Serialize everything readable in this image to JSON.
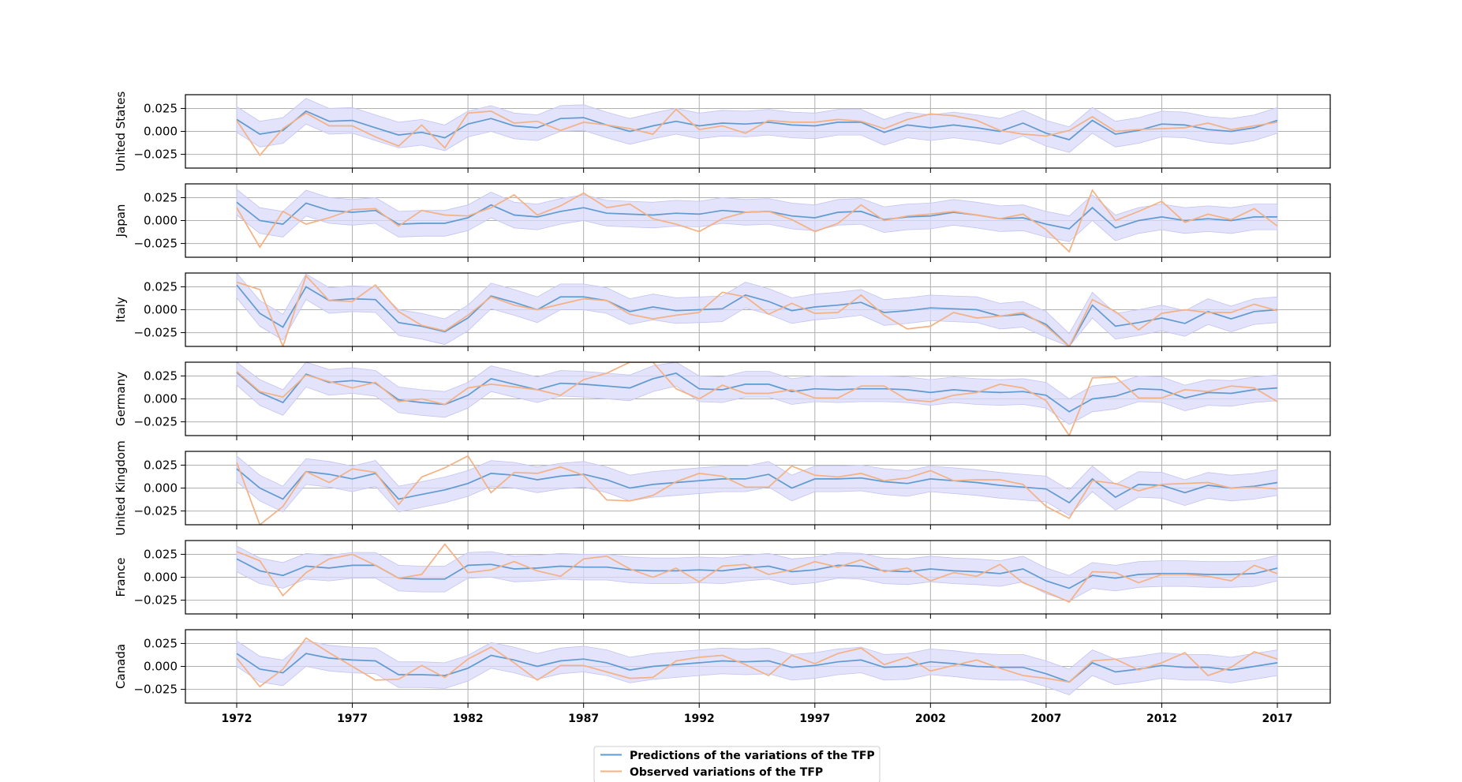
{
  "chart_data": {
    "type": "line",
    "years": [
      1972,
      1973,
      1974,
      1975,
      1976,
      1977,
      1978,
      1979,
      1980,
      1981,
      1982,
      1983,
      1984,
      1985,
      1986,
      1987,
      1988,
      1989,
      1990,
      1991,
      1992,
      1993,
      1994,
      1995,
      1996,
      1997,
      1998,
      1999,
      2000,
      2001,
      2002,
      2003,
      2004,
      2005,
      2006,
      2007,
      2008,
      2009,
      2010,
      2011,
      2012,
      2013,
      2014,
      2015,
      2016,
      2017
    ],
    "x_ticks": [
      "1972",
      "1977",
      "1982",
      "1987",
      "1992",
      "1997",
      "2002",
      "2007",
      "2012",
      "2017"
    ],
    "y_ticks": [
      "0.025",
      "0.000",
      "−0.025"
    ],
    "ylim": [
      -0.04,
      0.04
    ],
    "grid": true,
    "legend_position": "bottom-center",
    "colors": {
      "predicted": "#5f9ad1",
      "observed": "#f4b183",
      "band": "#d9d9fb",
      "band_stroke": "#c3c3f2",
      "grid": "#b0b0b0"
    },
    "legend": [
      {
        "label": "Predictions of the variations of the TFP",
        "color": "#5f9ad1"
      },
      {
        "label": "Observed variations of the TFP",
        "color": "#f4b183"
      }
    ],
    "band_halfwidth": 0.014,
    "panels": [
      {
        "country": "United States",
        "predicted": [
          0.013,
          -0.003,
          0.001,
          0.022,
          0.011,
          0.012,
          0.004,
          -0.004,
          -0.001,
          -0.007,
          0.008,
          0.014,
          0.006,
          0.004,
          0.014,
          0.015,
          0.007,
          0.0,
          0.006,
          0.011,
          0.006,
          0.009,
          0.008,
          0.01,
          0.007,
          0.006,
          0.01,
          0.01,
          -0.001,
          0.007,
          0.004,
          0.007,
          0.004,
          0.0,
          0.009,
          -0.002,
          -0.009,
          0.012,
          -0.003,
          0.001,
          0.008,
          0.007,
          0.002,
          0.0,
          0.004,
          0.012
        ],
        "observed": [
          0.012,
          -0.026,
          0.003,
          0.02,
          0.006,
          0.006,
          -0.006,
          -0.016,
          0.007,
          -0.018,
          0.02,
          0.022,
          0.009,
          0.011,
          0.001,
          0.01,
          0.007,
          0.003,
          -0.003,
          0.024,
          0.002,
          0.006,
          -0.002,
          0.012,
          0.01,
          0.01,
          0.013,
          0.011,
          0.003,
          0.013,
          0.019,
          0.017,
          0.012,
          0.001,
          -0.003,
          -0.005,
          0.001,
          0.016,
          0.0,
          0.002,
          0.003,
          0.004,
          0.009,
          0.002,
          0.006,
          0.01
        ]
      },
      {
        "country": "Japan",
        "predicted": [
          0.02,
          0.0,
          -0.004,
          0.019,
          0.011,
          0.009,
          0.011,
          -0.004,
          -0.003,
          -0.003,
          0.003,
          0.017,
          0.006,
          0.004,
          0.01,
          0.014,
          0.008,
          0.007,
          0.006,
          0.008,
          0.007,
          0.011,
          0.009,
          0.01,
          0.005,
          0.003,
          0.009,
          0.01,
          0.001,
          0.004,
          0.005,
          0.009,
          0.006,
          0.002,
          0.003,
          -0.004,
          -0.009,
          0.014,
          -0.008,
          0.0,
          0.004,
          0.0,
          0.002,
          0.0,
          0.004,
          0.004
        ],
        "observed": [
          0.014,
          -0.029,
          0.01,
          -0.004,
          0.003,
          0.012,
          0.013,
          -0.006,
          0.011,
          0.006,
          0.005,
          0.014,
          0.028,
          0.006,
          0.016,
          0.03,
          0.014,
          0.018,
          0.002,
          -0.004,
          -0.012,
          0.002,
          0.009,
          0.01,
          0.001,
          -0.012,
          -0.003,
          0.017,
          0.0,
          0.005,
          0.007,
          0.01,
          0.006,
          0.002,
          0.007,
          -0.01,
          -0.034,
          0.033,
          0.0,
          0.01,
          0.021,
          -0.002,
          0.007,
          0.001,
          0.013,
          -0.006
        ]
      },
      {
        "country": "Italy",
        "predicted": [
          0.027,
          -0.004,
          -0.019,
          0.025,
          0.01,
          0.012,
          0.011,
          -0.014,
          -0.018,
          -0.024,
          -0.009,
          0.015,
          0.008,
          0.0,
          0.014,
          0.014,
          0.01,
          -0.002,
          0.003,
          -0.001,
          0.0,
          0.001,
          0.016,
          0.009,
          -0.001,
          0.003,
          0.005,
          0.008,
          -0.003,
          -0.001,
          0.002,
          0.001,
          0.0,
          -0.007,
          -0.005,
          -0.016,
          -0.04,
          0.005,
          -0.018,
          -0.014,
          -0.009,
          -0.015,
          -0.002,
          -0.01,
          -0.002,
          0.0
        ],
        "observed": [
          0.03,
          0.022,
          -0.04,
          0.037,
          0.01,
          0.009,
          0.027,
          -0.002,
          -0.017,
          -0.023,
          -0.006,
          0.014,
          0.005,
          0.0,
          0.006,
          0.012,
          0.01,
          -0.005,
          -0.01,
          -0.006,
          -0.003,
          0.019,
          0.014,
          -0.005,
          0.007,
          -0.004,
          -0.003,
          0.016,
          -0.006,
          -0.021,
          -0.018,
          -0.003,
          -0.009,
          -0.007,
          -0.003,
          -0.018,
          -0.04,
          0.011,
          -0.002,
          -0.022,
          -0.004,
          0.0,
          -0.003,
          -0.003,
          0.006,
          -0.001
        ]
      },
      {
        "country": "Germany",
        "predicted": [
          0.029,
          0.007,
          -0.004,
          0.027,
          0.018,
          0.02,
          0.017,
          -0.001,
          -0.004,
          -0.006,
          0.004,
          0.022,
          0.016,
          0.01,
          0.017,
          0.016,
          0.014,
          0.012,
          0.022,
          0.028,
          0.011,
          0.01,
          0.016,
          0.016,
          0.008,
          0.011,
          0.01,
          0.011,
          0.011,
          0.01,
          0.007,
          0.01,
          0.008,
          0.007,
          0.008,
          0.004,
          -0.014,
          0.0,
          0.003,
          0.011,
          0.01,
          0.001,
          0.007,
          0.006,
          0.01,
          0.012
        ],
        "observed": [
          0.03,
          0.008,
          0.002,
          0.026,
          0.019,
          0.012,
          0.018,
          -0.003,
          0.0,
          -0.006,
          0.012,
          0.016,
          0.013,
          0.01,
          0.004,
          0.021,
          0.028,
          0.04,
          0.044,
          0.011,
          0.0,
          0.015,
          0.006,
          0.006,
          0.01,
          0.001,
          0.001,
          0.014,
          0.014,
          -0.001,
          -0.003,
          0.004,
          0.007,
          0.016,
          0.012,
          -0.002,
          -0.04,
          0.023,
          0.024,
          0.001,
          0.001,
          0.01,
          0.008,
          0.014,
          0.012,
          -0.003
        ]
      },
      {
        "country": "United Kingdom",
        "predicted": [
          0.021,
          0.0,
          -0.012,
          0.018,
          0.015,
          0.01,
          0.016,
          -0.012,
          -0.007,
          -0.002,
          0.005,
          0.016,
          0.014,
          0.009,
          0.013,
          0.015,
          0.009,
          0.0,
          0.004,
          0.006,
          0.008,
          0.01,
          0.01,
          0.015,
          0.0,
          0.01,
          0.01,
          0.011,
          0.007,
          0.005,
          0.01,
          0.008,
          0.006,
          0.003,
          0.001,
          -0.001,
          -0.016,
          0.01,
          -0.01,
          0.004,
          0.003,
          -0.005,
          0.003,
          0.0,
          0.002,
          0.006
        ],
        "observed": [
          0.028,
          -0.04,
          -0.02,
          0.018,
          0.006,
          0.021,
          0.017,
          -0.018,
          0.012,
          0.022,
          0.035,
          -0.005,
          0.017,
          0.016,
          0.023,
          0.014,
          -0.013,
          -0.014,
          -0.008,
          0.007,
          0.016,
          0.013,
          0.001,
          0.001,
          0.024,
          0.014,
          0.012,
          0.016,
          0.008,
          0.011,
          0.019,
          0.008,
          0.009,
          0.009,
          0.004,
          -0.02,
          -0.033,
          0.008,
          0.005,
          -0.003,
          0.004,
          0.005,
          0.006,
          0.0,
          0.001,
          -0.001
        ]
      },
      {
        "country": "France",
        "predicted": [
          0.02,
          0.007,
          0.002,
          0.012,
          0.01,
          0.013,
          0.013,
          -0.001,
          -0.002,
          -0.002,
          0.013,
          0.014,
          0.009,
          0.01,
          0.012,
          0.011,
          0.011,
          0.008,
          0.007,
          0.007,
          0.008,
          0.007,
          0.01,
          0.012,
          0.006,
          0.008,
          0.013,
          0.012,
          0.007,
          0.006,
          0.009,
          0.007,
          0.006,
          0.004,
          0.009,
          -0.004,
          -0.012,
          0.002,
          -0.001,
          0.003,
          0.004,
          0.004,
          0.003,
          0.003,
          0.004,
          0.01
        ],
        "observed": [
          0.028,
          0.018,
          -0.02,
          0.005,
          0.02,
          0.025,
          0.013,
          -0.001,
          0.003,
          0.036,
          0.005,
          0.008,
          0.017,
          0.007,
          0.001,
          0.02,
          0.023,
          0.009,
          0.0,
          0.01,
          -0.005,
          0.012,
          0.014,
          0.003,
          0.008,
          0.017,
          0.011,
          0.019,
          0.006,
          0.01,
          -0.004,
          0.005,
          0.001,
          0.014,
          -0.006,
          -0.016,
          -0.027,
          0.006,
          0.005,
          -0.006,
          0.003,
          0.003,
          0.001,
          -0.004,
          0.013,
          0.004
        ]
      },
      {
        "country": "Canada",
        "predicted": [
          0.014,
          -0.003,
          -0.007,
          0.014,
          0.009,
          0.007,
          0.006,
          -0.009,
          -0.009,
          -0.01,
          -0.002,
          0.012,
          0.007,
          0.0,
          0.006,
          0.008,
          0.004,
          -0.004,
          0.0,
          0.002,
          0.004,
          0.006,
          0.005,
          0.006,
          -0.001,
          0.001,
          0.005,
          0.007,
          -0.001,
          0.0,
          0.005,
          0.003,
          0.0,
          -0.001,
          -0.001,
          -0.008,
          -0.017,
          0.004,
          -0.006,
          -0.003,
          0.001,
          -0.001,
          -0.001,
          -0.004,
          0.0,
          0.004
        ],
        "observed": [
          0.009,
          -0.022,
          -0.003,
          0.031,
          0.015,
          0.0,
          -0.015,
          -0.014,
          0.001,
          -0.012,
          0.008,
          0.021,
          0.004,
          -0.015,
          0.001,
          0.001,
          -0.006,
          -0.013,
          -0.012,
          0.006,
          0.01,
          0.012,
          0.002,
          -0.01,
          0.012,
          0.003,
          0.014,
          0.02,
          0.002,
          0.01,
          -0.005,
          0.001,
          0.007,
          -0.002,
          -0.01,
          -0.013,
          -0.017,
          0.006,
          0.008,
          -0.004,
          0.004,
          0.015,
          -0.01,
          -0.001,
          0.016,
          0.008
        ]
      }
    ]
  }
}
